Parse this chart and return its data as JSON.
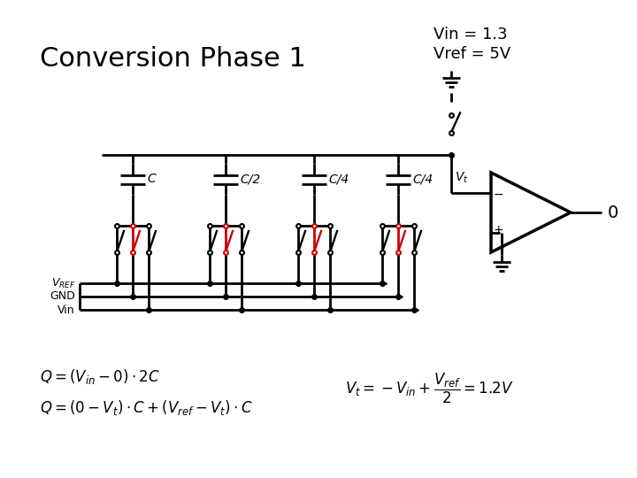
{
  "title": "Conversion Phase 1",
  "vin_label": "Vin = 1.3",
  "vref_label": "Vref = 5V",
  "output_label": "0",
  "cap_labels": [
    "C",
    "C/2",
    "C/4",
    "C/4"
  ],
  "bg_color": "#ffffff",
  "line_color": "#000000",
  "red_color": "#cc0000",
  "lw": 2.0
}
